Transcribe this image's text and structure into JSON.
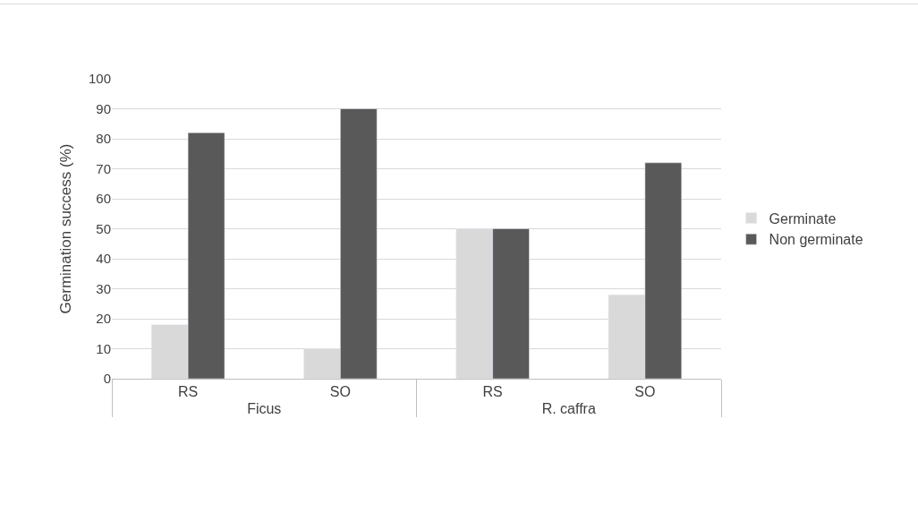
{
  "chart_data": {
    "type": "bar",
    "ylabel": "Germination success (%)",
    "categories": [
      "RS",
      "SO",
      "RS",
      "SO"
    ],
    "annotations": [
      "Ficus",
      "R. caffra"
    ],
    "series": [
      {
        "name": "Germinate",
        "color": "#d9d9d9",
        "values": [
          18,
          10,
          50,
          28
        ]
      },
      {
        "name": "Non germinate",
        "color": "#595959",
        "values": [
          82,
          90,
          50,
          72
        ]
      }
    ],
    "ylim": [
      0,
      100
    ],
    "yticks": [
      0,
      10,
      20,
      30,
      40,
      50,
      60,
      70,
      80,
      90,
      100
    ],
    "grid": "y",
    "legend": "right"
  }
}
